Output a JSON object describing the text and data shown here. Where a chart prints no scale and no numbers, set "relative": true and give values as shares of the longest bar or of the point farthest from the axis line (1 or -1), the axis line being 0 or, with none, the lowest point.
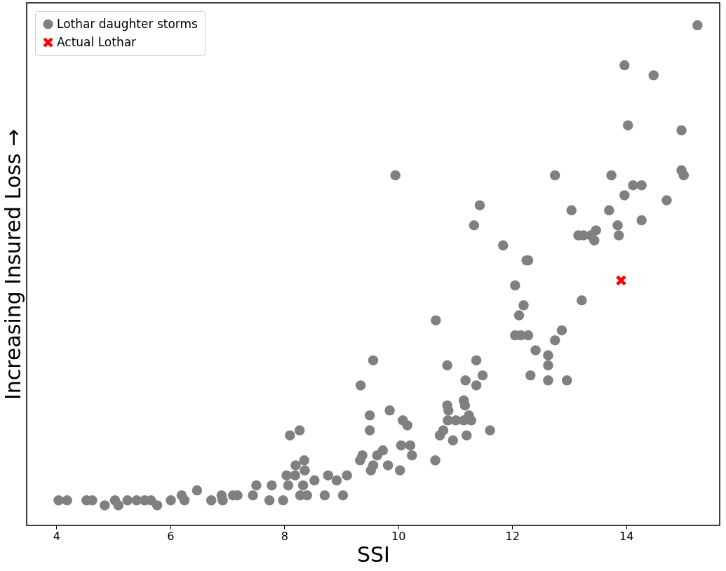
{
  "chart_data": {
    "type": "scatter",
    "xlabel": "SSI",
    "ylabel": "Increasing Insured Loss →",
    "relative": true,
    "xlim": [
      3.48,
      15.64
    ],
    "xticks": [
      4,
      6,
      8,
      10,
      12,
      14
    ],
    "grid": false,
    "legend": "top left",
    "series": [
      {
        "name": "Lothar daughter storms",
        "color": "#808080",
        "marker": "circle",
        "x": [
          15.25,
          14.48,
          13.97,
          14.03,
          14.97,
          14.97,
          15.01,
          9.95,
          12.75,
          13.74,
          14.71,
          14.27,
          14.12,
          13.97,
          13.7,
          13.04,
          14.27,
          13.85,
          13.87,
          13.47,
          13.38,
          13.25,
          13.16,
          13.44,
          11.43,
          11.33,
          11.84,
          12.28,
          12.25,
          13.22,
          12.05,
          12.2,
          12.12,
          12.05,
          12.15,
          12.28,
          12.87,
          12.75,
          12.41,
          12.63,
          12.63,
          12.32,
          12.63,
          12.96,
          10.66,
          10.86,
          11.37,
          9.56,
          9.34,
          11.18,
          11.48,
          11.37,
          10.86,
          10.88,
          11.15,
          11.17,
          11.24,
          11.01,
          11.15,
          11.28,
          10.87,
          10.79,
          10.73,
          10.96,
          11.2,
          11.61,
          10.65,
          9.85,
          9.5,
          10.08,
          10.16,
          9.5,
          10.05,
          10.21,
          10.24,
          9.73,
          9.63,
          9.37,
          9.33,
          9.56,
          9.82,
          10.03,
          9.52,
          8.1,
          8.27,
          4.04,
          4.19,
          4.53,
          4.63,
          4.85,
          5.03,
          5.09,
          5.25,
          5.41,
          5.66,
          5.77,
          6.01,
          6.25,
          6.47,
          6.72,
          6.92,
          6.9,
          7.18,
          7.45,
          7.51,
          7.78,
          7.74,
          7.98,
          8.04,
          8.19,
          8.36,
          8.33,
          8.4,
          8.28,
          8.77,
          8.71,
          9.03,
          9.1,
          6.2,
          5.55,
          7.1,
          8.07,
          8.53,
          8.92,
          8.2,
          8.35
        ],
        "values": [
          1.0,
          0.9,
          0.92,
          0.8,
          0.79,
          0.71,
          0.7,
          0.7,
          0.7,
          0.7,
          0.65,
          0.68,
          0.68,
          0.66,
          0.63,
          0.63,
          0.61,
          0.6,
          0.58,
          0.59,
          0.58,
          0.58,
          0.58,
          0.57,
          0.64,
          0.6,
          0.56,
          0.53,
          0.53,
          0.45,
          0.48,
          0.44,
          0.42,
          0.38,
          0.38,
          0.38,
          0.39,
          0.37,
          0.35,
          0.34,
          0.32,
          0.3,
          0.29,
          0.29,
          0.41,
          0.32,
          0.33,
          0.33,
          0.28,
          0.29,
          0.3,
          0.28,
          0.24,
          0.23,
          0.25,
          0.24,
          0.22,
          0.21,
          0.21,
          0.21,
          0.21,
          0.19,
          0.18,
          0.17,
          0.18,
          0.19,
          0.13,
          0.23,
          0.22,
          0.21,
          0.2,
          0.19,
          0.16,
          0.16,
          0.14,
          0.15,
          0.14,
          0.14,
          0.13,
          0.12,
          0.12,
          0.11,
          0.11,
          0.18,
          0.19,
          0.05,
          0.05,
          0.05,
          0.05,
          0.04,
          0.05,
          0.04,
          0.05,
          0.05,
          0.05,
          0.04,
          0.05,
          0.05,
          0.07,
          0.05,
          0.05,
          0.06,
          0.06,
          0.06,
          0.08,
          0.08,
          0.05,
          0.05,
          0.1,
          0.1,
          0.11,
          0.08,
          0.06,
          0.06,
          0.1,
          0.06,
          0.06,
          0.1,
          0.06,
          0.05,
          0.06,
          0.08,
          0.09,
          0.09,
          0.12,
          0.13
        ]
      },
      {
        "name": "Actual Lothar",
        "color": "#ff0000",
        "marker": "cross",
        "x": [
          13.91
        ],
        "values": [
          0.49
        ]
      }
    ]
  }
}
